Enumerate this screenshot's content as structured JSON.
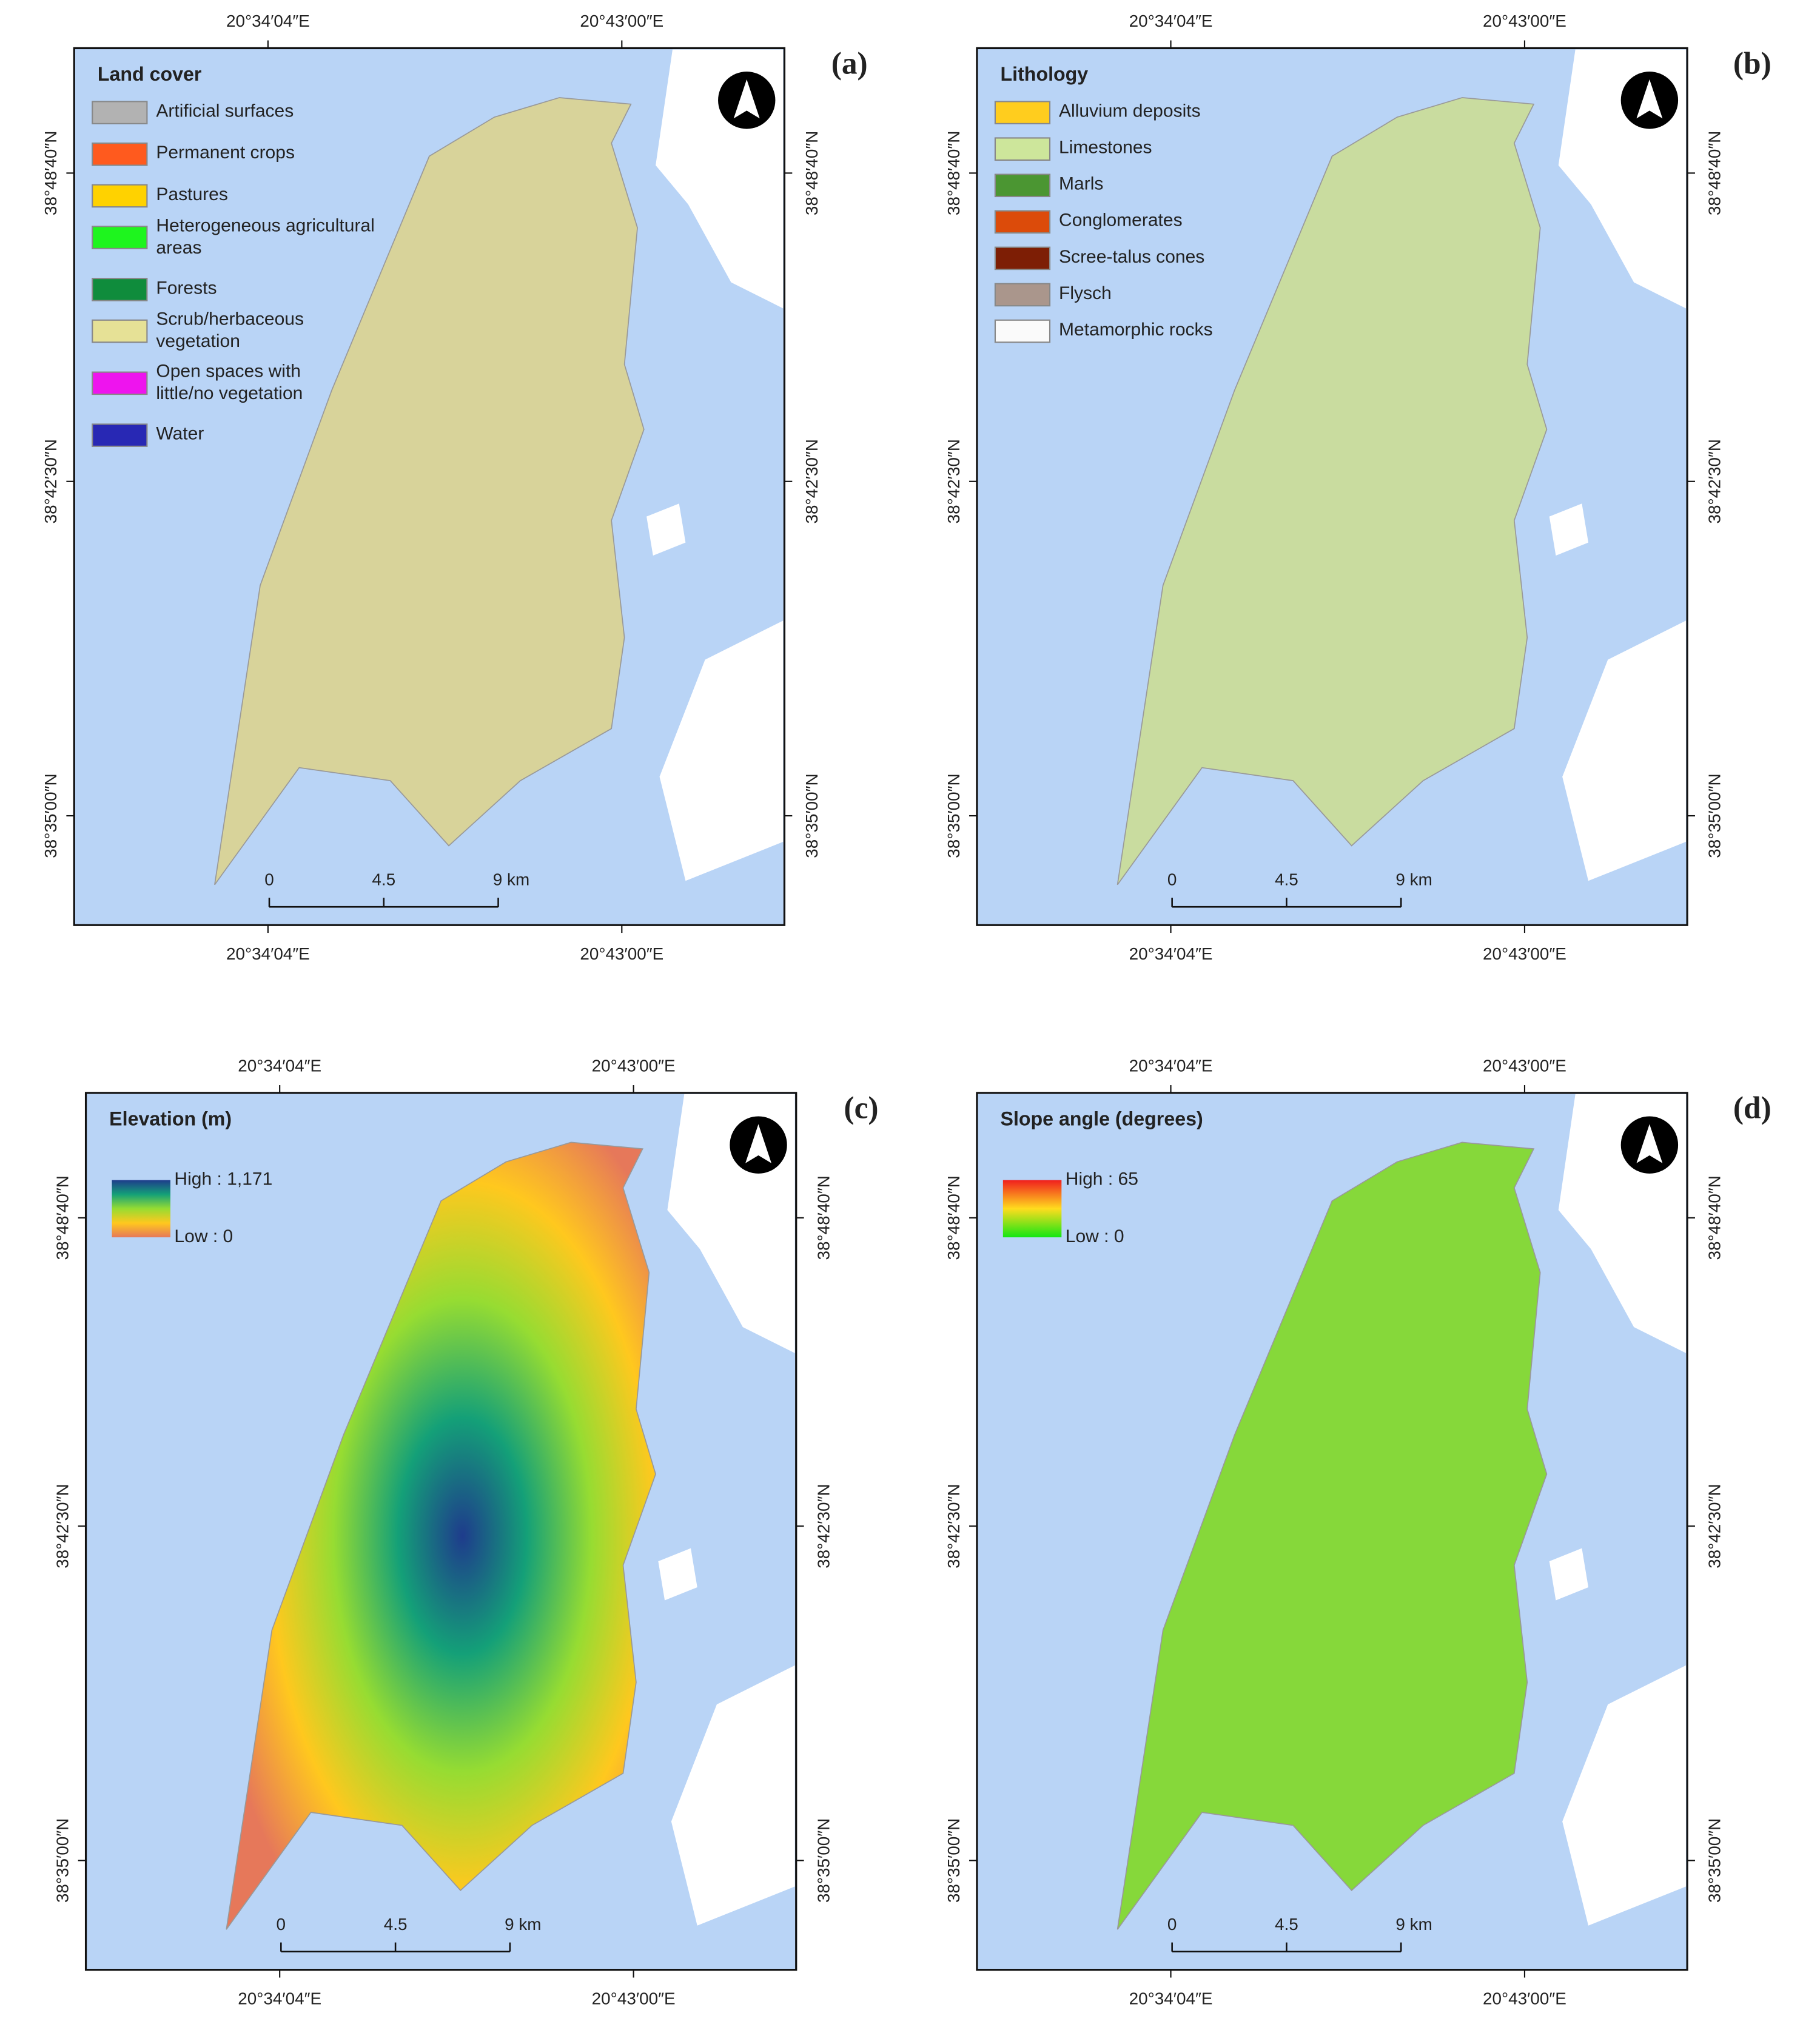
{
  "panels": [
    {
      "label": "(a)",
      "island_color": "#d8d39a",
      "legend": {
        "title": "Land cover",
        "items": [
          {
            "lines": [
              "Artificial surfaces"
            ],
            "color": "#b2b2b2"
          },
          {
            "lines": [
              "Permanent crops"
            ],
            "color": "#ff5a1e"
          },
          {
            "lines": [
              "Pastures"
            ],
            "color": "#ffd200"
          },
          {
            "lines": [
              "Heterogeneous agricultural",
              "areas"
            ],
            "color": "#1ef51e"
          },
          {
            "lines": [
              "Forests"
            ],
            "color": "#0f8c3c"
          },
          {
            "lines": [
              "Scrub/herbaceous",
              "vegetation"
            ],
            "color": "#e6e196"
          },
          {
            "lines": [
              "Open spaces with",
              "little/no vegetation"
            ],
            "color": "#ee14ee"
          },
          {
            "lines": [
              "Water"
            ],
            "color": "#2828b4"
          }
        ]
      },
      "lon_labels": [
        "20°34′04″E",
        "20°43′00″E"
      ],
      "lat_labels": [
        "38°48′40″N",
        "38°42′30″N",
        "38°35′00″N"
      ],
      "scale_labels": [
        "0",
        "4.5",
        "9 km"
      ]
    },
    {
      "label": "(b)",
      "island_color": "#c9dc9f",
      "legend": {
        "title": "Lithology",
        "items": [
          {
            "lines": [
              "Alluvium deposits"
            ],
            "color": "#ffcd1e"
          },
          {
            "lines": [
              "Limestones"
            ],
            "color": "#cde69b"
          },
          {
            "lines": [
              "Marls"
            ],
            "color": "#4b9632"
          },
          {
            "lines": [
              "Conglomerates"
            ],
            "color": "#dc4b0a"
          },
          {
            "lines": [
              "Scree-talus cones"
            ],
            "color": "#7d1e05"
          },
          {
            "lines": [
              "Flysch"
            ],
            "color": "#aa968c"
          },
          {
            "lines": [
              "Metamorphic rocks"
            ],
            "color": "#fafafa"
          }
        ]
      },
      "lon_labels": [
        "20°34′04″E",
        "20°43′00″E"
      ],
      "lat_labels": [
        "38°48′40″N",
        "38°42′30″N",
        "38°35′00″N"
      ],
      "scale_labels": [
        "0",
        "4.5",
        "9 km"
      ]
    },
    {
      "label": "(c)",
      "island_color": "#e8a070",
      "legend": {
        "title": "Elevation (m)",
        "high": "High : 1,171",
        "low": "Low : 0",
        "gradient": [
          "#1e3c8c",
          "#14a078",
          "#96dc32",
          "#ffc81e",
          "#e6785a"
        ]
      },
      "lon_labels": [
        "20°34′04″E",
        "20°43′00″E"
      ],
      "lat_labels": [
        "38°48′40″N",
        "38°42′30″N",
        "38°35′00″N"
      ],
      "scale_labels": [
        "0",
        "4.5",
        "9 km"
      ]
    },
    {
      "label": "(d)",
      "island_color": "#86d83a",
      "legend": {
        "title": "Slope angle (degrees)",
        "high": "High : 65",
        "low": "Low : 0",
        "gradient": [
          "#f01e1e",
          "#ffdc1e",
          "#14e614"
        ]
      },
      "lon_labels": [
        "20°34′04″E",
        "20°43′00″E"
      ],
      "lat_labels": [
        "38°48′40″N",
        "38°42′30″N",
        "38°35′00″N"
      ],
      "scale_labels": [
        "0",
        "4.5",
        "9 km"
      ]
    }
  ]
}
